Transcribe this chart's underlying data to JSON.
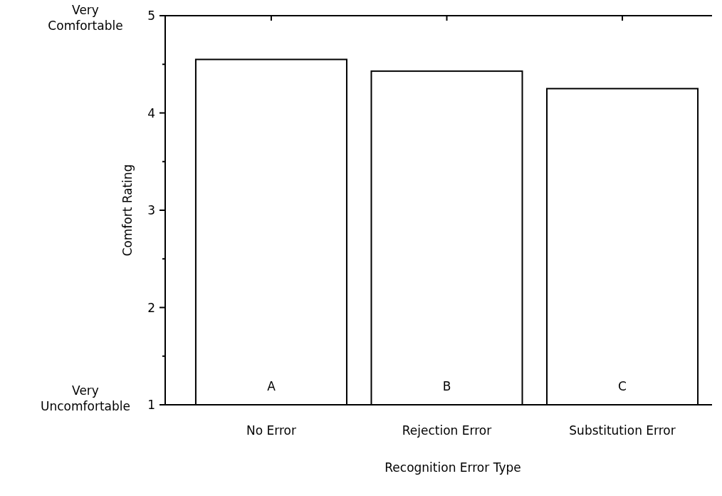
{
  "chart_data": {
    "type": "bar",
    "xlabel": "Recognition Error Type",
    "ylabel": "Comfort Rating",
    "categories": [
      "No Error",
      "Rejection Error",
      "Substitution Error"
    ],
    "values": [
      4.55,
      4.43,
      4.25
    ],
    "color": "#ffffff",
    "ylim": [
      1,
      5
    ],
    "yticks": [
      1,
      {
        "value": 1.5,
        "label": null
      },
      2,
      {
        "value": 2.5,
        "label": null
      },
      3,
      {
        "value": 3.5,
        "label": null
      },
      4,
      {
        "value": 4.5,
        "label": null
      },
      5
    ],
    "annotations": [
      "Very Comfortable",
      "Very Uncomfortable",
      {
        "text": "A",
        "x": "No Error",
        "y": 1
      },
      {
        "text": "B",
        "x": "Rejection Error",
        "y": 1
      },
      {
        "text": "C",
        "x": "Substitution Error",
        "y": 1
      }
    ],
    "grid": false
  }
}
